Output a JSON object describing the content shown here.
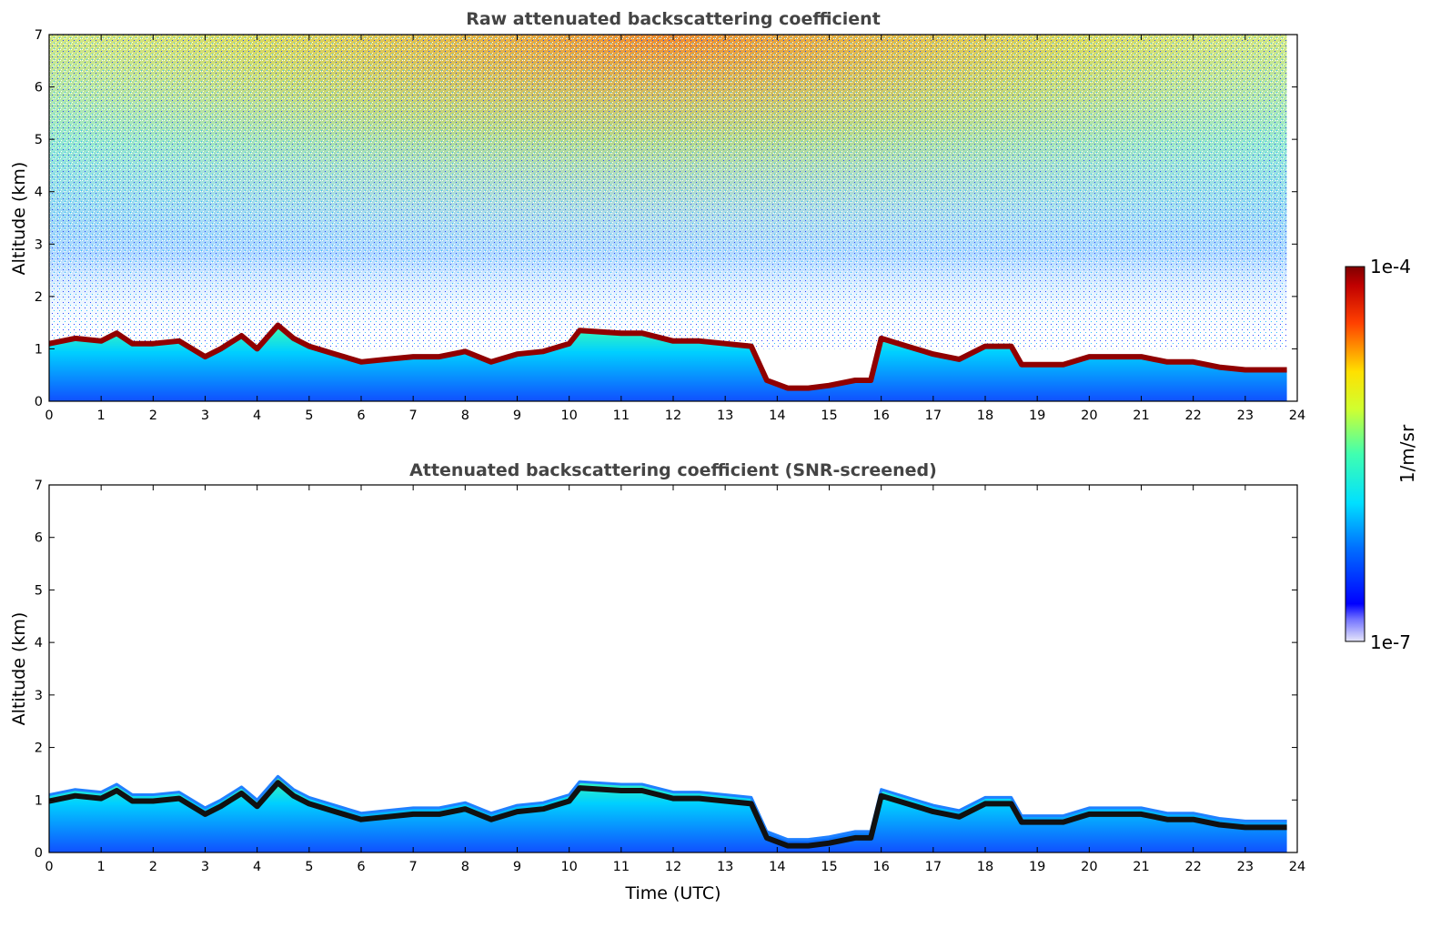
{
  "chart_data": [
    {
      "type": "heatmap",
      "title": "Raw attenuated backscattering coefficient",
      "xlabel": "",
      "ylabel": "Altitude (km)",
      "xlim": [
        0,
        24
      ],
      "ylim": [
        0,
        7
      ],
      "x_ticks": [
        "0",
        "1",
        "2",
        "3",
        "4",
        "5",
        "6",
        "7",
        "8",
        "9",
        "10",
        "11",
        "12",
        "13",
        "14",
        "15",
        "16",
        "17",
        "18",
        "19",
        "20",
        "21",
        "22",
        "23",
        "24"
      ],
      "y_ticks": [
        "0",
        "1",
        "2",
        "3",
        "4",
        "5",
        "6",
        "7"
      ],
      "data_end_time": 23.8,
      "boundary_layer_top_km": {
        "time": [
          0,
          0.5,
          1,
          1.3,
          1.6,
          2,
          2.5,
          3,
          3.3,
          3.7,
          4,
          4.4,
          4.7,
          5,
          5.5,
          6,
          6.5,
          7,
          7.5,
          8,
          8.5,
          9,
          9.5,
          10,
          10.2,
          11,
          11.4,
          12,
          12.5,
          13,
          13.5,
          13.8,
          14.2,
          14.6,
          15,
          15.5,
          15.8,
          16,
          16.5,
          17,
          17.5,
          18,
          18.5,
          18.7,
          19,
          19.5,
          20,
          21,
          21.5,
          22,
          22.5,
          23,
          23.5,
          23.8
        ],
        "altitude": [
          1.1,
          1.2,
          1.15,
          1.3,
          1.1,
          1.1,
          1.15,
          0.85,
          1.0,
          1.25,
          1.0,
          1.45,
          1.2,
          1.05,
          0.9,
          0.75,
          0.8,
          0.85,
          0.85,
          0.95,
          0.75,
          0.9,
          0.95,
          1.1,
          1.35,
          1.3,
          1.3,
          1.15,
          1.15,
          1.1,
          1.05,
          0.4,
          0.25,
          0.25,
          0.3,
          0.4,
          0.4,
          1.2,
          1.05,
          0.9,
          0.8,
          1.05,
          1.05,
          0.7,
          0.7,
          0.7,
          0.85,
          0.85,
          0.75,
          0.75,
          0.65,
          0.6,
          0.6,
          0.6
        ]
      }
    },
    {
      "type": "heatmap",
      "title": "Attenuated backscattering coefficient (SNR-screened)",
      "xlabel": "Time (UTC)",
      "ylabel": "Altitude (km)",
      "xlim": [
        0,
        24
      ],
      "ylim": [
        0,
        7
      ],
      "x_ticks": [
        "0",
        "1",
        "2",
        "3",
        "4",
        "5",
        "6",
        "7",
        "8",
        "9",
        "10",
        "11",
        "12",
        "13",
        "14",
        "15",
        "16",
        "17",
        "18",
        "19",
        "20",
        "21",
        "22",
        "23",
        "24"
      ],
      "y_ticks": [
        "0",
        "1",
        "2",
        "3",
        "4",
        "5",
        "6",
        "7"
      ],
      "data_end_time": 23.8
    }
  ],
  "colorbar": {
    "label": "1/m/sr",
    "max_label": "1e-4",
    "min_label": "1e-7",
    "scale": "log",
    "colormap": "jet"
  }
}
